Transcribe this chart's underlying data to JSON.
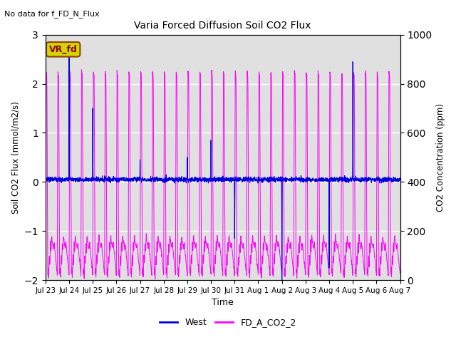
{
  "title": "Varia Forced Diffusion Soil CO2 Flux",
  "top_left_text": "No data for f_FD_N_Flux",
  "annotation_box_text": "VR_fd",
  "annotation_box_facecolor": "#d4d400",
  "annotation_box_edgecolor": "#8b4500",
  "annotation_box_textcolor": "#8b0000",
  "xlabel": "Time",
  "ylabel_left": "Soil CO2 Flux (mmol/m2/s)",
  "ylabel_right": "CO2 Concentration (ppm)",
  "ylim_left": [
    -2.0,
    3.0
  ],
  "ylim_right": [
    0,
    1000
  ],
  "background_color": "#e0e0e0",
  "grid_color": "white",
  "blue_color": "#0000dd",
  "magenta_color": "#ff00ff",
  "legend_labels": [
    "West",
    "FD_A_CO2_2"
  ],
  "xtick_labels": [
    "Jul 23",
    "Jul 24",
    "Jul 25",
    "Jul 26",
    "Jul 27",
    "Jul 28",
    "Jul 29",
    "Jul 30",
    "Jul 31",
    "Aug 1",
    "Aug 2",
    "Aug 3",
    "Aug 4",
    "Aug 5",
    "Aug 6",
    "Aug 7"
  ],
  "n_days": 15,
  "seed": 42
}
